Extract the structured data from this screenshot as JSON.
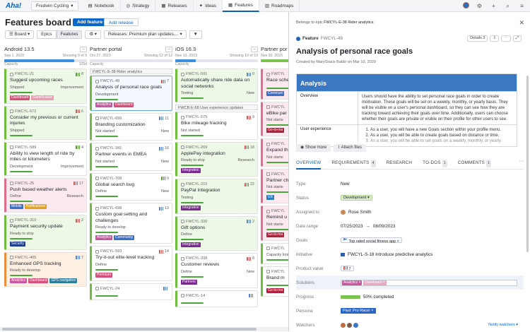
{
  "app": {
    "logo": "Aha!",
    "workspace": "Fredwin Cycling",
    "nav": [
      {
        "label": "Notebook",
        "icon": "notebook-icon"
      },
      {
        "label": "Strategy",
        "icon": "strategy-icon"
      },
      {
        "label": "Releases",
        "icon": "releases-icon"
      },
      {
        "label": "Ideas",
        "icon": "ideas-icon"
      },
      {
        "label": "Features",
        "icon": "features-icon",
        "active": true
      },
      {
        "label": "Roadmaps",
        "icon": "roadmaps-icon"
      }
    ]
  },
  "page": {
    "title": "Features board",
    "add_feature": "Add feature",
    "add_release": "Add release"
  },
  "toolbar": {
    "board": "Board",
    "epics": "Epics",
    "features": "Features",
    "filter": "Releases: Premium plan updates,..."
  },
  "columns": [
    {
      "name": "Android 13.5",
      "date": "Sep 1, 2023",
      "showing": "Showing 9 of 9",
      "capacity": "Capacity",
      "capacity_value": "125d",
      "capacity_fraction": 0.85,
      "cards": [
        {
          "id": "FWCYL-21",
          "score": "8",
          "scoreType": "g",
          "title": "Suggest upcoming races",
          "status": "Shipped",
          "category": "Improvement",
          "color": "c-green",
          "tags": [
            {
              "t": "Dashboard",
              "c": "#d84e7b"
            },
            {
              "t": "Gamification",
              "c": "#e99bb3"
            }
          ]
        },
        {
          "id": "FWCYL-672",
          "score": "6",
          "scoreType": "r",
          "title": "Consider my previous or current injuries",
          "status": "Shipped",
          "category": "",
          "color": "c-green",
          "tags": []
        },
        {
          "id": "FWCYL-589",
          "score": "4",
          "scoreType": "g",
          "title": "Ability to view length of ride by miles or kilometers",
          "status": "Development",
          "category": "Improvement",
          "color": "c-blue",
          "tags": []
        },
        {
          "id": "FWCYL-25",
          "score": "17",
          "scoreType": "r",
          "title": "Push based weather alerts",
          "status": "Define",
          "category": "Research",
          "color": "c-pink",
          "tags": [
            {
              "t": "Mobile",
              "c": "#3c6fc7"
            },
            {
              "t": "Notifications",
              "c": "#e2a21c"
            }
          ]
        },
        {
          "id": "FWCYL-310",
          "score": "2",
          "scoreType": "r",
          "title": "Payment security update",
          "status": "Ready to ship",
          "category": "",
          "color": "c-green",
          "tags": [
            {
              "t": "Security",
              "c": "#1d3e8a"
            }
          ]
        },
        {
          "id": "FWCYL-405",
          "score": "7",
          "scoreType": "b",
          "title": "Enhanced GPS tracking",
          "status": "Ready to develop",
          "category": "",
          "color": "c-orange",
          "tags": [
            {
              "t": "Analytics",
              "c": "#c8569e"
            },
            {
              "t": "Dashboard",
              "c": "#d84e7b"
            },
            {
              "t": "GPS navigation",
              "c": "#2d7d9a"
            }
          ]
        }
      ]
    },
    {
      "name": "Partner portal",
      "date": "Oct 27, 2023",
      "showing": "Showing 12 of 12",
      "capacity": "Capacity",
      "capacity_value": "",
      "capacity_fraction": 0,
      "group": "FWCYL-E-38 Rider analytics",
      "cards": [
        {
          "id": "FWCYL-49",
          "score": "7",
          "scoreType": "r",
          "title": "Analysis of personal race goals",
          "status": "Development",
          "category": "",
          "color": "selected",
          "tags": [
            {
              "t": "Analytics",
              "c": "#c8569e"
            },
            {
              "t": "Dashboard",
              "c": "#d84e7b"
            }
          ]
        },
        {
          "id": "FWCYL-699",
          "score": "11",
          "scoreType": "b",
          "title": "Branding customization",
          "status": "Not started",
          "category": "New",
          "color": "c-blue",
          "tags": []
        },
        {
          "id": "FWCYL-341",
          "score": "16",
          "scoreType": "b",
          "title": "Partner events in EMEA",
          "status": "Not started",
          "category": "New",
          "color": "c-blue",
          "tags": []
        },
        {
          "id": "FWCYL-708",
          "score": "0",
          "scoreType": "g",
          "title": "Global search bug",
          "status": "Define",
          "category": "New",
          "color": "c-blue",
          "tags": []
        },
        {
          "id": "FWCYL-698",
          "score": "13",
          "scoreType": "b",
          "title": "Custom goal setting and challenges",
          "status": "Ready to develop",
          "category": "",
          "color": "c-blue",
          "tags": [
            {
              "t": "Analytics",
              "c": "#c8569e"
            },
            {
              "t": "Community",
              "c": "#3c6fc7"
            }
          ]
        },
        {
          "id": "FWCYL-593",
          "score": "14",
          "scoreType": "r",
          "title": "Try-it-out elite-level tracking",
          "status": "Define",
          "category": "",
          "color": "c-blue",
          "tags": [
            {
              "t": "Premium",
              "c": "#d84e7b"
            }
          ]
        },
        {
          "id": "FWCYL-24",
          "score": "",
          "scoreType": "b",
          "title": "",
          "status": "",
          "category": "",
          "color": "c-blue",
          "tags": []
        }
      ]
    },
    {
      "name": "iOS 16.3",
      "date": "Nov 10, 2023",
      "showing": "Showing 10 of 10",
      "capacity": "Capacity",
      "capacity_value": "",
      "capacity_fraction": 0.25,
      "group2": "FWCB-E-68 User experience updates",
      "cards": [
        {
          "id": "FWCYL-591",
          "score": "0",
          "scoreType": "b",
          "title": "Automatically share ride data on social networks",
          "status": "Testing",
          "category": "New",
          "color": "c-green",
          "tags": []
        },
        {
          "id": "FWCYL-575",
          "score": "9",
          "scoreType": "r",
          "title": "Bike mileage tracking",
          "status": "Not started",
          "category": "",
          "color": "c-blue",
          "tags": []
        },
        {
          "id": "FWCYL-209",
          "score": "18",
          "scoreType": "r",
          "title": "ApplePay integration",
          "status": "Ready to ship",
          "category": "Research",
          "color": "c-green",
          "tags": [
            {
              "t": "Integration",
              "c": "#7a2a8f"
            }
          ]
        },
        {
          "id": "FWCYL-210",
          "score": "22",
          "scoreType": "r",
          "title": "PayPal Integration",
          "status": "Testing",
          "category": "",
          "color": "c-green",
          "tags": [
            {
              "t": "Integration",
              "c": "#7a2a8f"
            }
          ]
        },
        {
          "id": "FWCYL-320",
          "score": "2",
          "scoreType": "b",
          "title": "Gift options",
          "status": "Define",
          "category": "",
          "color": "c-green",
          "tags": [
            {
              "t": "Integration",
              "c": "#7a2a8f"
            }
          ]
        },
        {
          "id": "FWCYL-338",
          "score": "8",
          "scoreType": "r",
          "title": "Customer reviews",
          "status": "Define",
          "category": "New",
          "color": "c-blue",
          "tags": [
            {
              "t": "Partners",
              "c": "#7a2a8f"
            }
          ]
        },
        {
          "id": "FWCYL-14",
          "score": "",
          "scoreType": "b",
          "title": "",
          "status": "",
          "category": "",
          "color": "c-blue",
          "tags": []
        }
      ]
    },
    {
      "name": "Partner por",
      "date": "Nov 30, 2023",
      "showing": "",
      "capacity": "",
      "capacity_value": "",
      "capacity_fraction": 0.8,
      "cards": [
        {
          "id": "FWCYL",
          "score": "",
          "scoreType": "r",
          "title": "Race sche",
          "status": "",
          "category": "",
          "color": "c-pink",
          "tags": [
            {
              "t": "Communi",
              "c": "#3c6fc7"
            }
          ]
        },
        {
          "id": "FWCYL",
          "score": "",
          "scoreType": "r",
          "title": "eBike par",
          "status": "Not starte",
          "category": "",
          "color": "c-pink",
          "tags": [
            {
              "t": "Go-to-ma",
              "c": "#b0213c"
            }
          ]
        },
        {
          "id": "FWCYL",
          "score": "",
          "scoreType": "r",
          "title": "Expand th",
          "status": "Not starte",
          "category": "",
          "color": "c-pink",
          "tags": []
        },
        {
          "id": "FWCYL",
          "score": "",
          "scoreType": "r",
          "title": "Partner ch prizes",
          "status": "Not starte",
          "category": "",
          "color": "c-pink",
          "tags": [
            {
              "t": "UX",
              "c": "#2d7dbf"
            }
          ]
        },
        {
          "id": "FWCYL",
          "score": "",
          "scoreType": "r",
          "title": "Remind u",
          "status": "Not starte",
          "category": "",
          "color": "c-pink",
          "tags": [
            {
              "t": "Go-to-ma",
              "c": "#b0213c"
            }
          ]
        },
        {
          "id": "FWCYL",
          "score": "",
          "scoreType": "r",
          "title": "",
          "status": "Capacity limit",
          "category": "",
          "color": "c-blue",
          "tags": []
        },
        {
          "id": "FWCYL",
          "score": "",
          "scoreType": "r",
          "title": "Brand m",
          "status": "",
          "category": "",
          "color": "c-blue",
          "tags": [
            {
              "t": "Go-to-ma",
              "c": "#b0213c"
            }
          ]
        }
      ]
    }
  ],
  "panel": {
    "epic_prefix": "Belongs to epic",
    "epic": "FWCYL-E-38 Rider analytics",
    "feature_label": "Feature",
    "feature_id": "FWCYL-49",
    "details": "Details",
    "details_count": "3",
    "title": "Analysis of personal race goals",
    "created": "Created by MaryGrace Baldo on Mar 10, 2020",
    "description_heading": "Analysis",
    "overview_label": "Overview",
    "overview_text": "Users should have the ability to set personal race goals in order to create motivation. These goals will be set on a weekly, monthly, or yearly basis. They will be visible on a user's personal dashboard, so they can see how they are tracking toward achieving their goals over time. Additionally, users can choose whether their goals are private or visible on their profile for other users to see.",
    "ux_label": "User experience",
    "ux_items": [
      "As a user, you will have a new Goals section within your profile menu.",
      "As a user, you will be able to create goals based on distance or time.",
      "As a user, you will be able to set goals on a weekly, monthly, or yearly basis."
    ],
    "show_more": "Show more",
    "attach_files": "Attach files",
    "tabs": [
      {
        "label": "OVERVIEW",
        "count": ""
      },
      {
        "label": "REQUIREMENTS",
        "count": "4"
      },
      {
        "label": "RESEARCH",
        "count": ""
      },
      {
        "label": "TO-DOS",
        "count": "1"
      },
      {
        "label": "COMMENTS",
        "count": "1"
      }
    ],
    "fields": {
      "type": {
        "label": "Type",
        "value": "New"
      },
      "status": {
        "label": "Status",
        "value": "Development"
      },
      "assigned": {
        "label": "Assigned to",
        "value": "Rose Smith"
      },
      "date": {
        "label": "Date range",
        "start": "07/25/2023",
        "end": "08/09/2023"
      },
      "goals": {
        "label": "Goals",
        "value": "Top rated social fitness app"
      },
      "initiative": {
        "label": "Initiative",
        "value": "FWCYL-S-18 Introduce predictive analytics"
      },
      "product_value": {
        "label": "Product value",
        "value": "7"
      },
      "solutions": {
        "label": "Solutions",
        "tags": [
          "Analytics",
          "Dashboard"
        ]
      },
      "progress": {
        "label": "Progress",
        "value": "50% completed",
        "fraction": 0.5
      },
      "persona": {
        "label": "Persona",
        "value": "Paul: Pro Racer"
      },
      "watchers": {
        "label": "Watchers",
        "notify": "Notify watchers"
      }
    }
  }
}
